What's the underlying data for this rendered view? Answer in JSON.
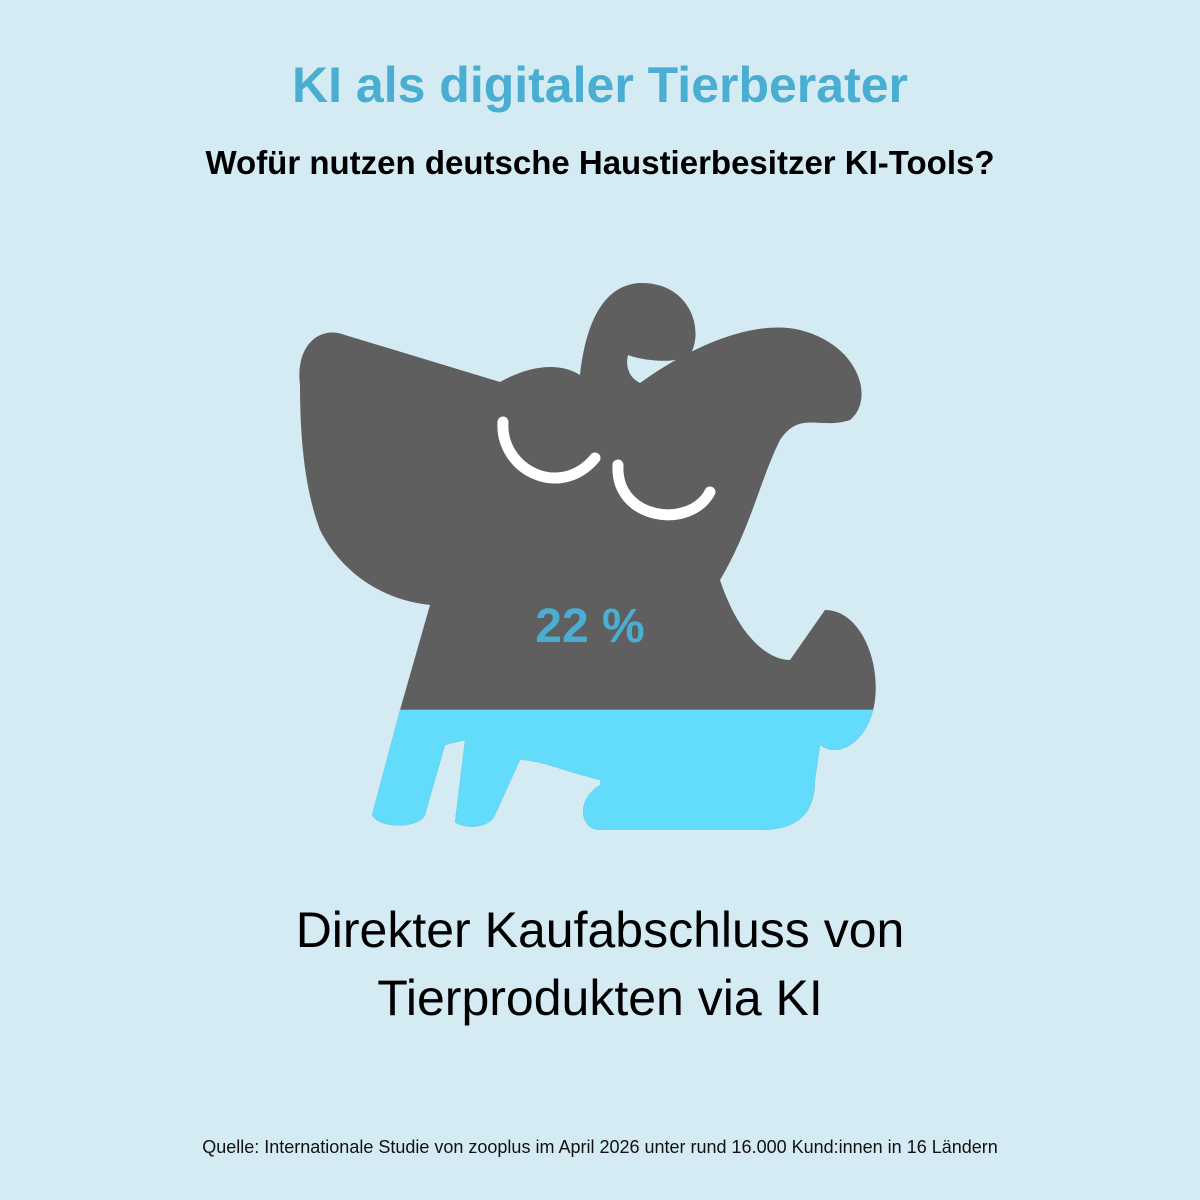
{
  "chart_data": {
    "type": "pictogram",
    "title": "KI als digitaler Tierberater",
    "subtitle": "Wofür nutzen deutsche Haustierbesitzer KI-Tools?",
    "categories": [
      "Direkter Kaufabschluss von Tierprodukten via KI"
    ],
    "values": [
      22
    ],
    "value_labels": [
      "22 %"
    ],
    "ylim": [
      0,
      100
    ],
    "color": "#62dcfa",
    "empty_color": "#5f5f5f",
    "label_color": "#4aaed3",
    "source": "Quelle: Internationale Studie von zooplus im April 2026 unter rund 16.000 Kund:innen in 16 Ländern"
  }
}
